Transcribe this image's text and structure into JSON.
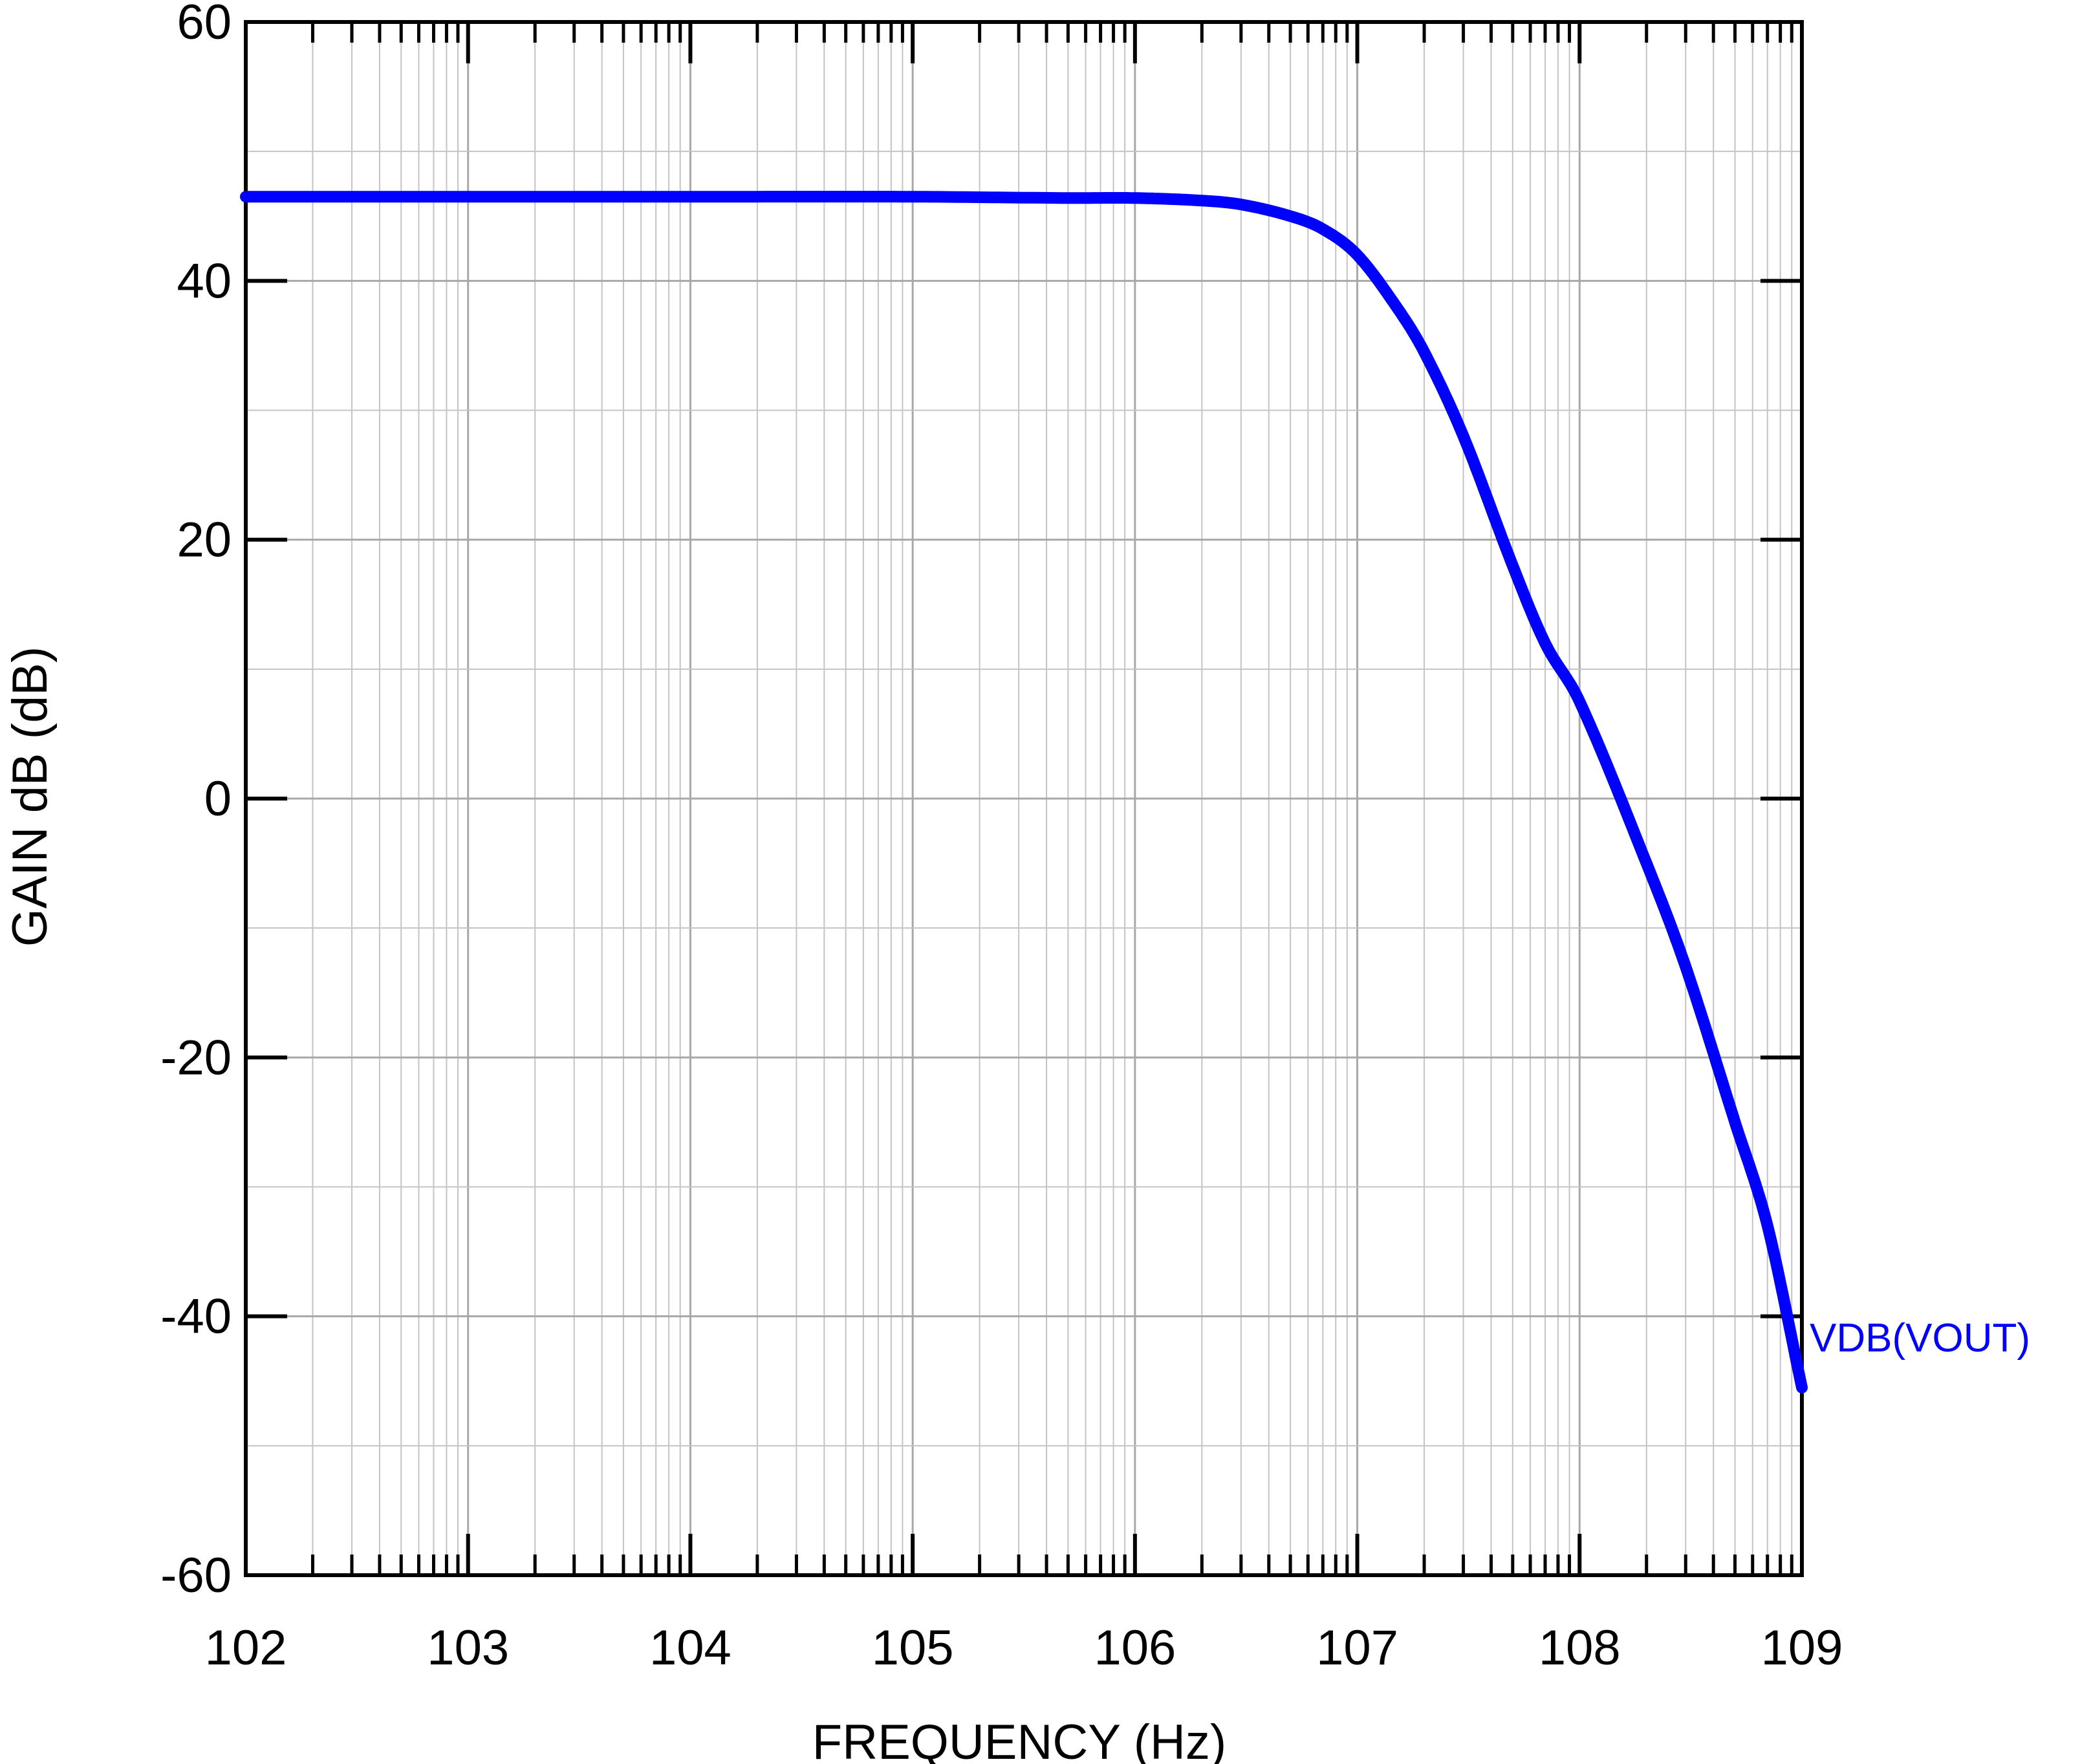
{
  "chart_data": {
    "type": "line",
    "xlabel": "FREQUENCY  (Hz)",
    "ylabel": "GAIN dB  (dB)",
    "x_scale": "log",
    "x_tick_labels": [
      "102",
      "103",
      "104",
      "105",
      "106",
      "107",
      "108",
      "109"
    ],
    "y_tick_labels": [
      "60",
      "40",
      "20",
      "0",
      "-20",
      "-40",
      "-60"
    ],
    "xlim": [
      100,
      1000000000
    ],
    "ylim": [
      -60,
      60
    ],
    "grid": true,
    "series": [
      {
        "name": "VDB(VOUT)",
        "color": "#0000ff",
        "x": [
          100,
          1000,
          10000,
          100000,
          500000,
          1000000,
          2000000,
          3000000,
          5000000,
          7000000,
          10000000,
          15000000,
          20000000,
          30000000,
          50000000,
          70000000,
          100000000,
          200000000,
          300000000,
          500000000,
          700000000,
          1000000000
        ],
        "y": [
          46.5,
          46.5,
          46.5,
          46.5,
          46.4,
          46.4,
          46.2,
          45.9,
          45.0,
          44.0,
          42.0,
          38.0,
          34.5,
          28.0,
          18.0,
          12.0,
          7.5,
          -5.0,
          -13.0,
          -25.0,
          -33.0,
          -45.5
        ]
      }
    ]
  }
}
